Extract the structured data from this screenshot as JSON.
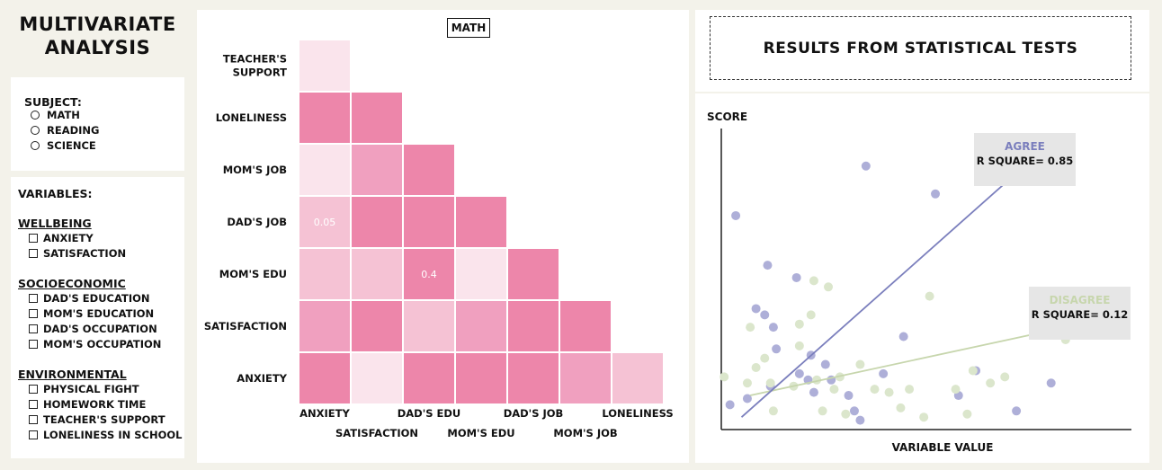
{
  "app": {
    "title_line1": "Multivariate",
    "title_line2": "Analysis"
  },
  "subject": {
    "label": "Subject:",
    "options": [
      {
        "label": "Math"
      },
      {
        "label": "Reading"
      },
      {
        "label": "Science"
      }
    ]
  },
  "variables": {
    "label": "Variables:",
    "groups": [
      {
        "title": "Wellbeing",
        "items": [
          "Anxiety",
          "Satisfaction"
        ]
      },
      {
        "title": "Socioeconomic",
        "items": [
          "Dad's Education",
          "Mom's Education",
          "Dad's Occupation",
          "Mom's Occupation"
        ]
      },
      {
        "title": "Environmental",
        "items": [
          "Physical Fight",
          "Homework Time",
          "Teacher's Support",
          "Loneliness in School"
        ]
      }
    ]
  },
  "heatmap": {
    "subject_tag": "Math",
    "row_labels": [
      [
        "Teacher's",
        "Support"
      ],
      [
        "Loneliness"
      ],
      [
        "Mom's Job"
      ],
      [
        "Dad's Job"
      ],
      [
        "Mom's Edu"
      ],
      [
        "Satisfaction"
      ],
      [
        "Anxiety"
      ]
    ],
    "col_labels": [
      "Anxiety",
      "Satisfaction",
      "Dad's Edu",
      "Mom's Edu",
      "Dad's Job",
      "Mom's Job",
      "Loneliness"
    ],
    "colors": {
      "1": "#ed86aa",
      "2": "#f0a0bf",
      "3": "#f5c2d4",
      "4": "#fae4ec"
    },
    "cells": [
      [
        4
      ],
      [
        1,
        1
      ],
      [
        4,
        2,
        1
      ],
      [
        3,
        1,
        1,
        1
      ],
      [
        3,
        3,
        1,
        4,
        1
      ],
      [
        2,
        1,
        3,
        2,
        1,
        1
      ],
      [
        1,
        4,
        1,
        1,
        1,
        2,
        3
      ]
    ],
    "annotations": [
      {
        "row": 3,
        "col": 0,
        "text": "0.05"
      },
      {
        "row": 4,
        "col": 2,
        "text": "0.4"
      }
    ]
  },
  "results": {
    "header": "Results from Statistical Tests",
    "y_label": "Score",
    "x_label": "Variable Value",
    "agree": {
      "title": "Agree",
      "stat": "R Square= 0.85",
      "color": "#7b7fbd"
    },
    "disagree": {
      "title": "Disagree",
      "stat": "R Square= 0.12",
      "color": "#c7d6ad"
    }
  },
  "chart_data": {
    "type": "scatter",
    "xlabel": "Variable Value",
    "ylabel": "Score",
    "series": [
      {
        "name": "Agree",
        "color": "#aeafd8",
        "points": [
          [
            0.05,
            0.69
          ],
          [
            0.16,
            0.53
          ],
          [
            0.5,
            0.85
          ],
          [
            0.74,
            0.76
          ],
          [
            0.12,
            0.39
          ],
          [
            0.26,
            0.49
          ],
          [
            0.15,
            0.37
          ],
          [
            0.18,
            0.33
          ],
          [
            0.63,
            0.3
          ],
          [
            0.19,
            0.26
          ],
          [
            0.31,
            0.24
          ],
          [
            0.36,
            0.21
          ],
          [
            0.27,
            0.18
          ],
          [
            0.3,
            0.16
          ],
          [
            0.38,
            0.16
          ],
          [
            0.32,
            0.12
          ],
          [
            0.44,
            0.11
          ],
          [
            0.56,
            0.18
          ],
          [
            0.88,
            0.19
          ],
          [
            0.17,
            0.14
          ],
          [
            0.09,
            0.1
          ],
          [
            0.46,
            0.06
          ],
          [
            0.48,
            0.03
          ],
          [
            0.82,
            0.11
          ],
          [
            1.14,
            0.15
          ],
          [
            1.02,
            0.06
          ],
          [
            0.03,
            0.08
          ]
        ]
      },
      {
        "name": "Disagree",
        "color": "#dbe6cc",
        "points": [
          [
            0.72,
            0.43
          ],
          [
            0.32,
            0.48
          ],
          [
            0.37,
            0.46
          ],
          [
            0.27,
            0.34
          ],
          [
            0.31,
            0.37
          ],
          [
            0.1,
            0.33
          ],
          [
            0.27,
            0.27
          ],
          [
            0.15,
            0.23
          ],
          [
            0.12,
            0.2
          ],
          [
            0.09,
            0.15
          ],
          [
            0.17,
            0.15
          ],
          [
            0.25,
            0.14
          ],
          [
            0.33,
            0.16
          ],
          [
            0.39,
            0.13
          ],
          [
            0.48,
            0.21
          ],
          [
            0.41,
            0.17
          ],
          [
            0.53,
            0.13
          ],
          [
            0.65,
            0.13
          ],
          [
            0.81,
            0.13
          ],
          [
            0.87,
            0.19
          ],
          [
            0.93,
            0.15
          ],
          [
            0.98,
            0.17
          ],
          [
            0.18,
            0.06
          ],
          [
            0.35,
            0.06
          ],
          [
            0.43,
            0.05
          ],
          [
            0.58,
            0.12
          ],
          [
            0.62,
            0.07
          ],
          [
            0.7,
            0.04
          ],
          [
            0.85,
            0.05
          ],
          [
            0.01,
            0.17
          ],
          [
            1.13,
            0.35
          ],
          [
            1.19,
            0.29
          ]
        ]
      }
    ],
    "regression": {
      "agree": {
        "x": [
          0.07,
          1.12
        ],
        "y": [
          0.04,
          0.91
        ]
      },
      "disagree": {
        "x": [
          0.1,
          1.34
        ],
        "y": [
          0.11,
          0.36
        ]
      }
    }
  }
}
